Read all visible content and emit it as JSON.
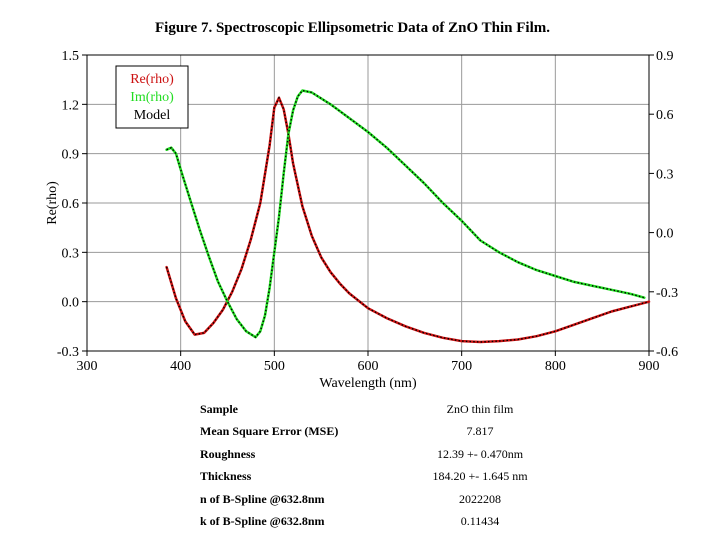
{
  "figure": {
    "title": "Figure 7. Spectroscopic Ellipsometric Data of ZnO Thin Film."
  },
  "chart_data": {
    "type": "line",
    "title": "Figure 7. Spectroscopic Ellipsometric Data of ZnO Thin Film.",
    "xlabel": "Wavelength (nm)",
    "ylabel": "Re(rho)",
    "xlim": [
      300,
      900
    ],
    "ylim": [
      -0.3,
      1.5
    ],
    "y2lim": [
      -0.6,
      0.9
    ],
    "xticks": [
      300,
      400,
      500,
      600,
      700,
      800,
      900
    ],
    "yticks": [
      -0.3,
      0.0,
      0.3,
      0.6,
      0.9,
      1.2,
      1.5
    ],
    "y2ticks": [
      -0.6,
      -0.3,
      0.0,
      0.3,
      0.6,
      0.9
    ],
    "xtick_labels": [
      "300",
      "400",
      "500",
      "600",
      "700",
      "800",
      "900"
    ],
    "ytick_labels": [
      "-0.3",
      "0.0",
      "0.3",
      "0.6",
      "0.9",
      "1.2",
      "1.5"
    ],
    "y2tick_labels": [
      "-0.6",
      "-0.3",
      "0.0",
      "0.3",
      "0.6",
      "0.9"
    ],
    "grid": true,
    "legend_position": "top-left",
    "legend": [
      {
        "name": "Re(rho)",
        "color": "#cc1111"
      },
      {
        "name": "Im(rho)",
        "color": "#22dd22"
      },
      {
        "name": "Model",
        "color": "#000000"
      }
    ],
    "series": [
      {
        "name": "Re(rho)",
        "axis": "left",
        "color": "#cc1111",
        "x": [
          385,
          395,
          405,
          415,
          425,
          435,
          445,
          455,
          465,
          475,
          485,
          495,
          500,
          505,
          510,
          515,
          520,
          530,
          540,
          550,
          560,
          570,
          580,
          600,
          620,
          640,
          660,
          680,
          700,
          720,
          740,
          760,
          780,
          800,
          820,
          840,
          860,
          880,
          900
        ],
        "y": [
          0.21,
          0.02,
          -0.12,
          -0.2,
          -0.19,
          -0.13,
          -0.05,
          0.06,
          0.2,
          0.38,
          0.6,
          0.95,
          1.18,
          1.24,
          1.17,
          1.02,
          0.84,
          0.58,
          0.4,
          0.27,
          0.18,
          0.11,
          0.05,
          -0.04,
          -0.1,
          -0.15,
          -0.19,
          -0.22,
          -0.24,
          -0.245,
          -0.24,
          -0.23,
          -0.21,
          -0.18,
          -0.14,
          -0.1,
          -0.06,
          -0.03,
          0.0
        ]
      },
      {
        "name": "Im(rho)",
        "axis": "right",
        "color": "#22dd22",
        "x": [
          385,
          390,
          395,
          400,
          410,
          420,
          430,
          440,
          450,
          460,
          470,
          480,
          485,
          490,
          495,
          500,
          505,
          510,
          515,
          520,
          525,
          530,
          540,
          560,
          580,
          600,
          620,
          640,
          660,
          680,
          700,
          720,
          740,
          760,
          780,
          800,
          820,
          840,
          860,
          880,
          895
        ],
        "y": [
          0.42,
          0.43,
          0.4,
          0.32,
          0.17,
          0.02,
          -0.12,
          -0.25,
          -0.35,
          -0.44,
          -0.5,
          -0.53,
          -0.5,
          -0.42,
          -0.28,
          -0.1,
          0.08,
          0.3,
          0.5,
          0.62,
          0.69,
          0.72,
          0.71,
          0.65,
          0.58,
          0.51,
          0.43,
          0.34,
          0.25,
          0.15,
          0.06,
          -0.04,
          -0.1,
          -0.15,
          -0.19,
          -0.22,
          -0.25,
          -0.27,
          -0.29,
          -0.31,
          -0.33
        ]
      }
    ],
    "model": {
      "name": "Model",
      "color": "#000000",
      "style": "dotted",
      "overlays": [
        "Re(rho)",
        "Im(rho)"
      ]
    }
  },
  "results_table": [
    {
      "label": "Sample",
      "value": "ZnO thin film"
    },
    {
      "label": "Mean Square Error (MSE)",
      "value": "7.817"
    },
    {
      "label": "Roughness",
      "value": "12.39 +- 0.470nm"
    },
    {
      "label": "Thickness",
      "value": "184.20 +- 1.645 nm"
    },
    {
      "label": "n of B-Spline @632.8nm",
      "value": "2022208"
    },
    {
      "label": "k of B-Spline @632.8nm",
      "value": "0.11434"
    }
  ]
}
